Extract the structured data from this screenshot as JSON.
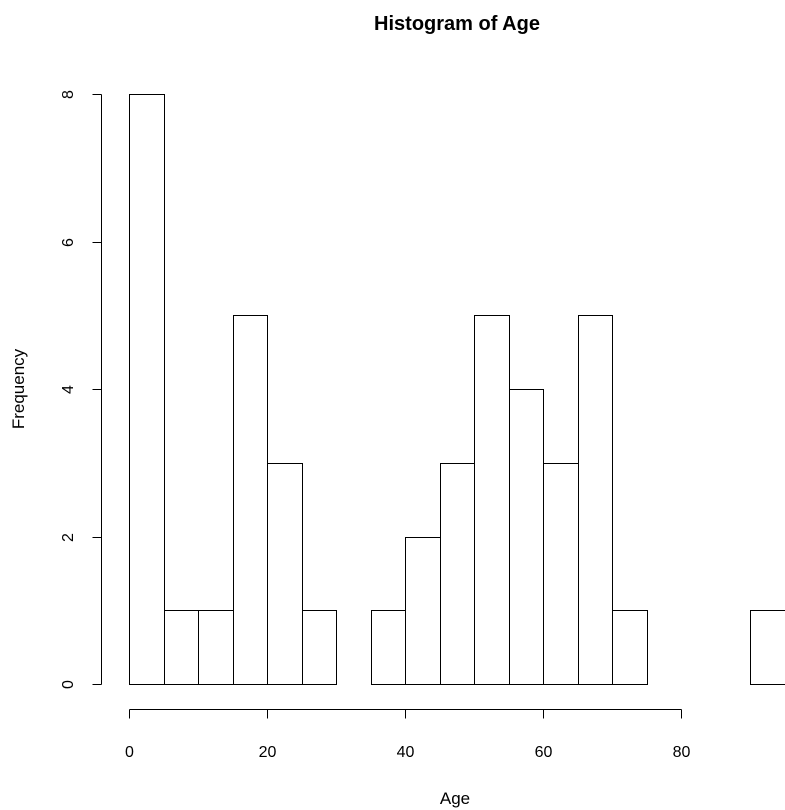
{
  "chart_data": {
    "type": "bar",
    "title": "Histogram of Age",
    "xlabel": "Age",
    "ylabel": "Frequency",
    "bins": [
      {
        "start": 0,
        "end": 5,
        "count": 8
      },
      {
        "start": 5,
        "end": 10,
        "count": 1
      },
      {
        "start": 10,
        "end": 15,
        "count": 1
      },
      {
        "start": 15,
        "end": 20,
        "count": 5
      },
      {
        "start": 20,
        "end": 25,
        "count": 3
      },
      {
        "start": 25,
        "end": 30,
        "count": 1
      },
      {
        "start": 30,
        "end": 35,
        "count": 0
      },
      {
        "start": 35,
        "end": 40,
        "count": 1
      },
      {
        "start": 40,
        "end": 45,
        "count": 2
      },
      {
        "start": 45,
        "end": 50,
        "count": 3
      },
      {
        "start": 50,
        "end": 55,
        "count": 5
      },
      {
        "start": 55,
        "end": 60,
        "count": 4
      },
      {
        "start": 60,
        "end": 65,
        "count": 3
      },
      {
        "start": 65,
        "end": 70,
        "count": 5
      },
      {
        "start": 70,
        "end": 75,
        "count": 1
      },
      {
        "start": 75,
        "end": 80,
        "count": 0
      },
      {
        "start": 80,
        "end": 85,
        "count": 0
      },
      {
        "start": 85,
        "end": 90,
        "count": 0
      },
      {
        "start": 90,
        "end": 95,
        "count": 1
      }
    ],
    "x_ticks": [
      0,
      20,
      40,
      60,
      80
    ],
    "y_ticks": [
      0,
      2,
      4,
      6,
      8
    ],
    "xlim": [
      0,
      95
    ],
    "ylim": [
      0,
      8
    ],
    "x_axis_range": [
      0,
      80
    ],
    "grid": false,
    "legend": "none"
  }
}
